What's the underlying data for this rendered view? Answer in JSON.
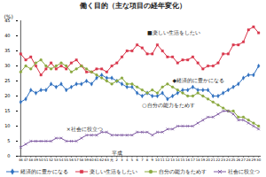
{
  "chart_data": {
    "type": "line",
    "title": "働く目的（主な項目の経年変化）",
    "y_label": "(%)",
    "categories": [
      "46",
      "47",
      "48",
      "49",
      "50",
      "51",
      "52",
      "53",
      "54",
      "55",
      "56",
      "57",
      "58",
      "59",
      "60",
      "61",
      "62",
      "63",
      "元",
      "2",
      "3",
      "4",
      "5",
      "6",
      "7",
      "8",
      "9",
      "10",
      "11",
      "12",
      "13",
      "14",
      "15",
      "16",
      "17",
      "18",
      "19",
      "20",
      "21",
      "22",
      "23",
      "24",
      "25",
      "26",
      "27",
      "28",
      "29",
      "30"
    ],
    "series": [
      {
        "name": "経済的に豊かになる",
        "color": "#2e6fbf",
        "marker": "diamond",
        "values": [
          18,
          19,
          22,
          21,
          22,
          22,
          24,
          23,
          24,
          22,
          23,
          24,
          24,
          25,
          24,
          26,
          27,
          26,
          26,
          25,
          24,
          23,
          23,
          21,
          20,
          21,
          20,
          20,
          21,
          19,
          20,
          21,
          22,
          22,
          23,
          22,
          22,
          22,
          20,
          20,
          21,
          22,
          23,
          24,
          26,
          27,
          27,
          30
        ]
      },
      {
        "name": "楽しい生活をしたい",
        "color": "#d9344a",
        "marker": "square",
        "values": [
          34,
          32,
          33,
          30,
          27,
          29,
          31,
          29,
          30,
          29,
          31,
          32,
          30,
          28,
          28,
          29,
          29,
          28,
          30,
          31,
          33,
          35,
          35,
          37,
          36,
          34,
          34,
          37,
          35,
          33,
          33,
          31,
          32,
          32,
          33,
          31,
          29,
          30,
          30,
          31,
          34,
          34,
          37,
          37,
          38,
          42,
          43,
          41
        ]
      },
      {
        "name": "自分の能力をためす",
        "color": "#8aa83e",
        "marker": "circle",
        "values": [
          28,
          30,
          29,
          31,
          32,
          30,
          29,
          30,
          31,
          30,
          28,
          29,
          30,
          29,
          28,
          27,
          26,
          25,
          24,
          25,
          26,
          24,
          24,
          23,
          22,
          21,
          22,
          21,
          23,
          24,
          23,
          22,
          21,
          20,
          20,
          21,
          20,
          19,
          18,
          17,
          16,
          15,
          15,
          13,
          13,
          12,
          11,
          10
        ]
      },
      {
        "name": "社会に役立つ",
        "color": "#7f5aa2",
        "marker": "times",
        "values": [
          3,
          4,
          5,
          5,
          5,
          5,
          5,
          6,
          6,
          5,
          5,
          5,
          6,
          7,
          7,
          7,
          8,
          8,
          7,
          7,
          7,
          7,
          7,
          8,
          8,
          8,
          7,
          8,
          8,
          9,
          9,
          10,
          10,
          10,
          10,
          11,
          12,
          13,
          13,
          14,
          15,
          15,
          14,
          12,
          12,
          11,
          10,
          9
        ]
      }
    ],
    "ylim": [
      0,
      45
    ],
    "yticks": [
      0,
      5,
      10,
      15,
      20,
      25,
      30,
      35,
      40,
      45
    ],
    "grid": false,
    "legend": "bottom",
    "annotations": [
      {
        "text": "■楽しい生活をしたい",
        "x": "8",
        "y": 41
      },
      {
        "text": "◆経済的に豊かになる",
        "x": "13",
        "y": 25
      },
      {
        "text": "○自分の能力をためす",
        "x": "7",
        "y": 17
      },
      {
        "text": "×社会に役立つ",
        "x": "55",
        "y": 9
      },
      {
        "text": "平成",
        "x": "元",
        "y": 1
      }
    ]
  }
}
